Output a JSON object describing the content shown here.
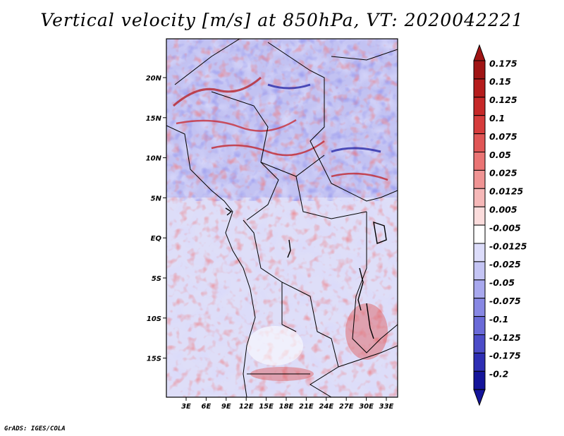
{
  "title": "Vertical velocity [m/s] at 850hPa, VT: 2020042221",
  "credit": "GrADS: IGES/COLA",
  "map": {
    "lat_labels": [
      "20N",
      "15N",
      "10N",
      "5N",
      "EQ",
      "5S",
      "10S",
      "15S"
    ],
    "lon_labels": [
      "3E",
      "6E",
      "9E",
      "12E",
      "15E",
      "18E",
      "21E",
      "24E",
      "27E",
      "30E",
      "33E"
    ],
    "field_description": "850hPa vertical velocity shaded"
  },
  "colorbar": {
    "levels": [
      "0.175",
      "0.15",
      "0.125",
      "0.1",
      "0.075",
      "0.05",
      "0.025",
      "0.0125",
      "0.005",
      "-0.005",
      "-0.0125",
      "-0.025",
      "-0.05",
      "-0.075",
      "-0.1",
      "-0.125",
      "-0.175",
      "-0.2"
    ],
    "colors": [
      "#a01414",
      "#b51c1c",
      "#c62828",
      "#d63c3c",
      "#e05656",
      "#ea7474",
      "#f09494",
      "#f6b8b8",
      "#fbdcdc",
      "#ffffff",
      "#dcdcfa",
      "#c4c4f4",
      "#a8a8ee",
      "#8888e4",
      "#6a6ad8",
      "#4c4cc8",
      "#2e2eb4",
      "#14149a"
    ],
    "top_arrow_color": "#a01414",
    "bottom_arrow_color": "#14149a"
  }
}
